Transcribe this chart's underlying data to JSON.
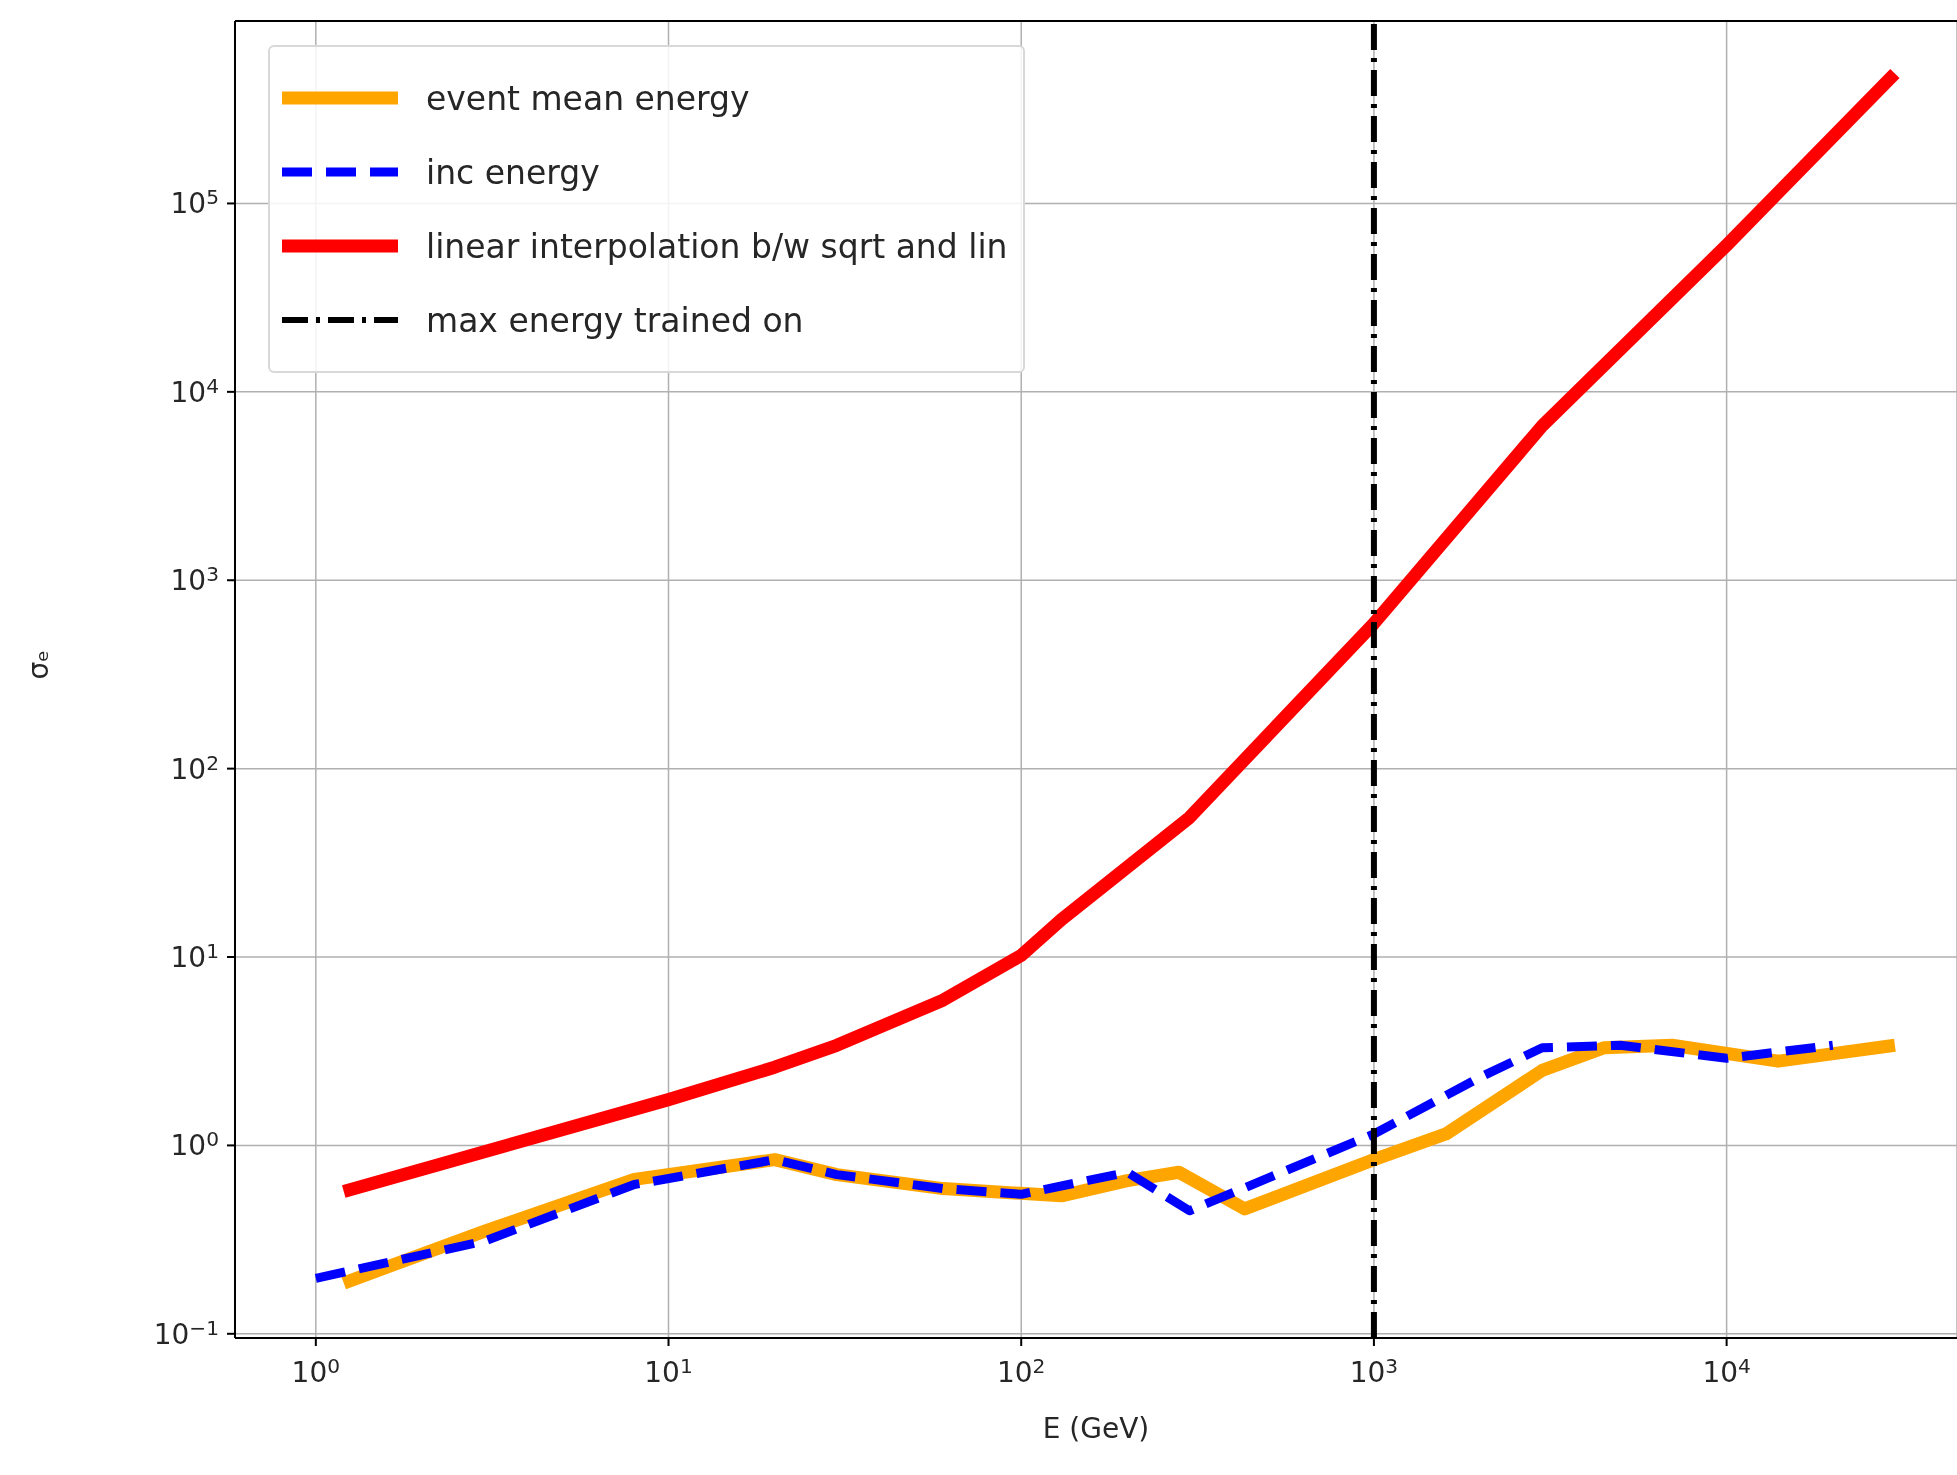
{
  "chart_data": {
    "type": "line",
    "xlabel": "E (GeV)",
    "ylabel": "σₑ",
    "log": "xy",
    "grid": true,
    "legend": "top left",
    "xlim": [
      0.59,
      45000
    ],
    "ylim": [
      0.095,
      930000
    ],
    "xticks": [
      {
        "value": 1,
        "label": "10$^{0}$"
      },
      {
        "value": 10,
        "label": "10$^{1}$"
      },
      {
        "value": 100,
        "label": "10$^{2}$"
      },
      {
        "value": 1000,
        "label": "10$^{3}$"
      },
      {
        "value": 10000,
        "label": "10$^{4}$"
      }
    ],
    "yticks": [
      {
        "value": 0.1,
        "label": "10$^{−1}$"
      },
      {
        "value": 1,
        "label": "10$^{0}$"
      },
      {
        "value": 10,
        "label": "10$^{1}$"
      },
      {
        "value": 100,
        "label": "10$^{2}$"
      },
      {
        "value": 1000,
        "label": "10$^{3}$"
      },
      {
        "value": 10000,
        "label": "10$^{4}$"
      },
      {
        "value": 100000,
        "label": "10$^{5}$"
      }
    ],
    "series": [
      {
        "name": "event mean energy",
        "color": "#ffa500",
        "line_style": "solid",
        "x": [
          1.2,
          3,
          8,
          20,
          30,
          60,
          130,
          200,
          280,
          430,
          1000,
          1600,
          3000,
          4500,
          7000,
          14000,
          30000
        ],
        "values": [
          0.186,
          0.35,
          0.66,
          0.84,
          0.7,
          0.59,
          0.54,
          0.65,
          0.72,
          0.46,
          0.84,
          1.15,
          2.5,
          3.3,
          3.4,
          2.8,
          3.4
        ]
      },
      {
        "name": "inc energy",
        "color": "#0000ff",
        "line_style": "dashed",
        "x": [
          1,
          3,
          8,
          20,
          30,
          60,
          100,
          200,
          300,
          1000,
          2000,
          3000,
          5000,
          10000,
          20000
        ],
        "values": [
          0.197,
          0.31,
          0.62,
          0.84,
          0.7,
          0.59,
          0.55,
          0.72,
          0.45,
          1.15,
          2.3,
          3.3,
          3.4,
          2.9,
          3.4
        ]
      },
      {
        "name": "linear interpolation b/w sqrt and lin",
        "color": "#ff0000",
        "line_style": "solid",
        "x": [
          1.2,
          10,
          20,
          30,
          60,
          100,
          130,
          300,
          1000,
          3000,
          10000,
          30000
        ],
        "values": [
          0.57,
          1.75,
          2.6,
          3.4,
          5.9,
          10.2,
          15.8,
          55,
          590,
          6600,
          60000,
          490000
        ]
      },
      {
        "name": "max energy trained on",
        "color": "#000000",
        "line_style": "dashdot",
        "x": [
          1000,
          1000
        ],
        "values": [
          0.095,
          930000
        ]
      }
    ]
  }
}
